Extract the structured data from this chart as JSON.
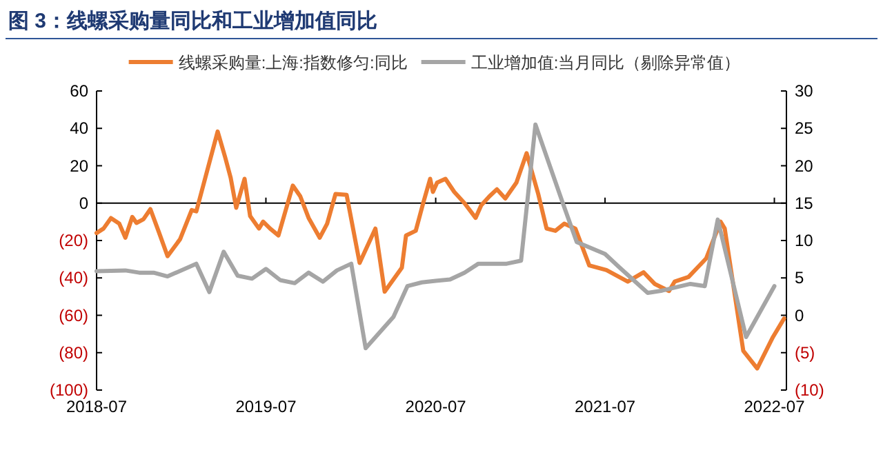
{
  "chart_data": {
    "type": "line",
    "title": "图 3：线螺采购量同比和工业增加值同比",
    "xlim": [
      "2018-07-01",
      "2022-07-27"
    ],
    "xticks": [
      "2018-07",
      "2019-07",
      "2020-07",
      "2021-07",
      "2022-07"
    ],
    "ylim": [
      -100,
      60
    ],
    "yticks": [
      60,
      40,
      20,
      0,
      {
        "value": -20,
        "label": "(20)"
      },
      {
        "value": -40,
        "label": "(40)"
      },
      {
        "value": -60,
        "label": "(60)"
      },
      {
        "value": -80,
        "label": "(80)"
      },
      {
        "value": -100,
        "label": "(100)"
      }
    ],
    "y2lim": [
      -10,
      30
    ],
    "y2ticks": [
      30,
      25,
      20,
      15,
      10,
      5,
      0,
      {
        "value": -5,
        "label": "(5)"
      },
      {
        "value": -10,
        "label": "(10)"
      }
    ],
    "legend": "top",
    "line_style": "solid",
    "marker": "none",
    "ref_lines": [
      {
        "axis": "y",
        "value": 0,
        "color": "#000000"
      }
    ],
    "series": [
      {
        "name": "线螺采购量:上海:指数修匀:同比",
        "color": "#ed7d31",
        "x": [
          "2018-07-01",
          "2018-07-16",
          "2018-08-01",
          "2018-08-19",
          "2018-09-01",
          "2018-09-16",
          "2018-09-25",
          "2018-10-10",
          "2018-10-25",
          "2018-11-13",
          "2018-12-01",
          "2018-12-28",
          "2019-01-22",
          "2019-02-01",
          "2019-03-19",
          "2019-04-04",
          "2019-04-16",
          "2019-04-28",
          "2019-05-16",
          "2019-05-28",
          "2019-06-16",
          "2019-06-25",
          "2019-07-10",
          "2019-07-28",
          "2019-08-28",
          "2019-09-13",
          "2019-10-01",
          "2019-10-25",
          "2019-11-10",
          "2019-11-28",
          "2019-12-22",
          "2020-01-19",
          "2020-02-22",
          "2020-03-13",
          "2020-04-19",
          "2020-04-28",
          "2020-05-19",
          "2020-06-04",
          "2020-06-19",
          "2020-06-25",
          "2020-07-04",
          "2020-07-22",
          "2020-08-10",
          "2020-09-01",
          "2020-09-25",
          "2020-10-07",
          "2020-10-25",
          "2020-11-10",
          "2020-11-28",
          "2020-12-22",
          "2021-01-13",
          "2021-02-07",
          "2021-02-25",
          "2021-03-16",
          "2021-04-04",
          "2021-04-28",
          "2021-05-28",
          "2021-07-04",
          "2021-08-19",
          "2021-09-22",
          "2021-10-16",
          "2021-11-16",
          "2021-11-28",
          "2021-12-28",
          "2022-02-04",
          "2022-03-07",
          "2022-03-16",
          "2022-04-25",
          "2022-05-25",
          "2022-06-28",
          "2022-07-22"
        ],
        "values": [
          -16,
          -13.6,
          -8,
          -11,
          -18.5,
          -7.4,
          -10.6,
          -8.6,
          -3.2,
          -16,
          -28.4,
          -19.3,
          -3.7,
          -4.4,
          38.3,
          24.7,
          13.6,
          -2.5,
          13,
          -6.9,
          -13.6,
          -9.9,
          -13.6,
          -17.3,
          9.4,
          3.7,
          -7.9,
          -18.5,
          -11,
          4.9,
          4.4,
          -32,
          -13.6,
          -47.4,
          -34.6,
          -17.3,
          -14.8,
          0,
          13,
          6,
          11,
          13,
          6,
          0,
          -7.9,
          -1.2,
          3.7,
          7.4,
          2.5,
          11,
          26.7,
          4.9,
          -13.6,
          -14.8,
          -11,
          -13.6,
          -33.3,
          -35.8,
          -42,
          -37,
          -43.2,
          -47,
          -42,
          -39.5,
          -29.6,
          -9.9,
          -13.6,
          -79,
          -88.4,
          -71.6,
          -61.7
        ]
      },
      {
        "name": "工业增加值:当月同比（剔除异常值）",
        "color": "#a5a5a5",
        "axis": "y2",
        "x": [
          "2018-07",
          "2018-09",
          "2018-10",
          "2018-11",
          "2018-12",
          "2019-02",
          "2019-03",
          "2019-04",
          "2019-05",
          "2019-06",
          "2019-07",
          "2019-08",
          "2019-09",
          "2019-10",
          "2019-11",
          "2019-12",
          "2020-01",
          "2020-02",
          "2020-04",
          "2020-05",
          "2020-06",
          "2020-07",
          "2020-08",
          "2020-09",
          "2020-10",
          "2020-12",
          "2021-01",
          "2021-02",
          "2021-04",
          "2021-05",
          "2021-07",
          "2021-08",
          "2021-10",
          "2021-11",
          "2022-01",
          "2022-02",
          "2022-03",
          "2022-05",
          "2022-07"
        ],
        "values": [
          5.9,
          6.0,
          5.7,
          5.7,
          5.2,
          6.9,
          3.1,
          8.5,
          5.3,
          4.9,
          6.2,
          4.7,
          4.3,
          5.7,
          4.5,
          6.0,
          6.9,
          -4.4,
          -0.2,
          3.9,
          4.4,
          4.6,
          4.8,
          5.7,
          6.9,
          6.9,
          7.3,
          25.5,
          15,
          9.8,
          8.2,
          6.4,
          3.0,
          3.3,
          4.2,
          3.9,
          12.8,
          -2.9,
          3.9
        ]
      }
    ]
  }
}
